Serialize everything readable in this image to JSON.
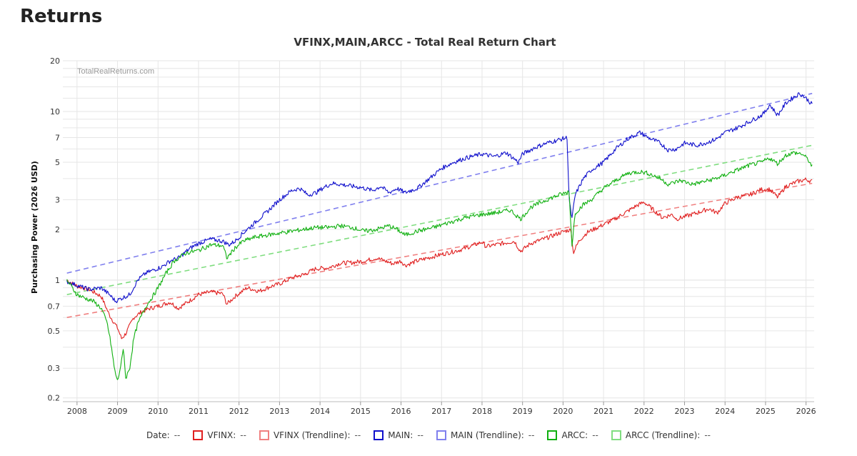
{
  "page": {
    "title": "Returns"
  },
  "legend": {
    "date_label": "Date:",
    "date_value": "--",
    "items": [
      {
        "label": "VFINX:",
        "value": "--",
        "color": "#e02020",
        "style": "solid"
      },
      {
        "label": "VFINX (Trendline):",
        "value": "--",
        "color": "#f08080",
        "style": "dashed"
      },
      {
        "label": "MAIN:",
        "value": "--",
        "color": "#1010cc",
        "style": "solid"
      },
      {
        "label": "MAIN (Trendline):",
        "value": "--",
        "color": "#8080ee",
        "style": "dashed"
      },
      {
        "label": "ARCC:",
        "value": "--",
        "color": "#10b010",
        "style": "solid"
      },
      {
        "label": "ARCC (Trendline):",
        "value": "--",
        "color": "#80dd80",
        "style": "dashed"
      }
    ]
  },
  "chart_data": {
    "type": "line",
    "title": "VFINX,MAIN,ARCC - Total Real Return Chart",
    "ylabel": "Purchasing Power (2026 USD)",
    "xlabel": "",
    "watermark": "TotalRealReturns.com",
    "y_scale": "log",
    "ylim": [
      0.19,
      20
    ],
    "xlim": [
      2007.7,
      2026.2
    ],
    "yticks": [
      0.2,
      0.3,
      0.5,
      0.7,
      1,
      2,
      3,
      5,
      7,
      10,
      20
    ],
    "ytick_labels": [
      "0.2",
      "0.3",
      "0.5",
      "0.7",
      "1",
      "2",
      "3",
      "5",
      "7",
      "10",
      "20"
    ],
    "xticks": [
      2008,
      2009,
      2010,
      2011,
      2012,
      2013,
      2014,
      2015,
      2016,
      2017,
      2018,
      2019,
      2020,
      2021,
      2022,
      2023,
      2024,
      2025,
      2026
    ],
    "xtick_labels": [
      "2008",
      "2009",
      "2010",
      "2011",
      "2012",
      "2013",
      "2014",
      "2015",
      "2016",
      "2017",
      "2018",
      "2019",
      "2020",
      "2021",
      "2022",
      "2023",
      "2024",
      "2025",
      "2026"
    ],
    "grid": true,
    "legend_position": "bottom",
    "series": [
      {
        "name": "VFINX",
        "color": "#e02020",
        "dash": false,
        "x": [
          2007.75,
          2008.0,
          2008.3,
          2008.6,
          2008.8,
          2009.0,
          2009.1,
          2009.2,
          2009.4,
          2009.6,
          2009.8,
          2010.0,
          2010.3,
          2010.5,
          2010.8,
          2011.0,
          2011.3,
          2011.6,
          2011.7,
          2011.9,
          2012.2,
          2012.5,
          2012.8,
          2013.0,
          2013.3,
          2013.6,
          2013.9,
          2014.2,
          2014.5,
          2014.8,
          2015.1,
          2015.4,
          2015.6,
          2015.8,
          2016.0,
          2016.1,
          2016.4,
          2016.8,
          2017.0,
          2017.5,
          2018.0,
          2018.1,
          2018.5,
          2018.8,
          2018.95,
          2019.2,
          2019.6,
          2019.9,
          2020.1,
          2020.2,
          2020.25,
          2020.4,
          2020.6,
          2020.9,
          2021.2,
          2021.5,
          2021.8,
          2022.0,
          2022.2,
          2022.45,
          2022.7,
          2022.8,
          2023.0,
          2023.3,
          2023.6,
          2023.8,
          2024.0,
          2024.3,
          2024.6,
          2024.9,
          2025.1,
          2025.3,
          2025.5,
          2025.8,
          2026.0,
          2026.15
        ],
        "y": [
          1.0,
          0.92,
          0.88,
          0.8,
          0.62,
          0.52,
          0.45,
          0.48,
          0.6,
          0.65,
          0.68,
          0.7,
          0.74,
          0.68,
          0.76,
          0.82,
          0.85,
          0.83,
          0.72,
          0.8,
          0.9,
          0.86,
          0.92,
          0.95,
          1.03,
          1.08,
          1.17,
          1.18,
          1.26,
          1.27,
          1.3,
          1.35,
          1.3,
          1.25,
          1.3,
          1.22,
          1.3,
          1.38,
          1.42,
          1.52,
          1.68,
          1.58,
          1.65,
          1.7,
          1.48,
          1.65,
          1.78,
          1.9,
          1.97,
          1.98,
          1.45,
          1.72,
          1.92,
          2.08,
          2.25,
          2.48,
          2.75,
          2.9,
          2.65,
          2.35,
          2.45,
          2.3,
          2.38,
          2.5,
          2.65,
          2.5,
          2.85,
          3.1,
          3.2,
          3.45,
          3.45,
          3.1,
          3.6,
          3.85,
          3.95,
          3.85
        ]
      },
      {
        "name": "VFINX (Trendline)",
        "color": "#f08080",
        "dash": true,
        "x": [
          2007.75,
          2026.15
        ],
        "y": [
          0.6,
          3.75
        ]
      },
      {
        "name": "MAIN",
        "color": "#1010cc",
        "dash": false,
        "x": [
          2007.75,
          2008.0,
          2008.3,
          2008.6,
          2008.8,
          2008.95,
          2009.1,
          2009.3,
          2009.5,
          2009.7,
          2009.9,
          2010.1,
          2010.3,
          2010.5,
          2010.8,
          2011.0,
          2011.3,
          2011.6,
          2011.75,
          2011.9,
          2012.1,
          2012.4,
          2012.7,
          2013.0,
          2013.3,
          2013.5,
          2013.7,
          2013.9,
          2014.1,
          2014.3,
          2014.5,
          2014.8,
          2015.0,
          2015.3,
          2015.5,
          2015.7,
          2015.9,
          2016.1,
          2016.4,
          2016.7,
          2017.0,
          2017.3,
          2017.6,
          2018.0,
          2018.3,
          2018.6,
          2018.9,
          2019.0,
          2019.3,
          2019.6,
          2019.9,
          2020.1,
          2020.15,
          2020.22,
          2020.3,
          2020.5,
          2020.7,
          2021.0,
          2021.3,
          2021.6,
          2021.9,
          2022.1,
          2022.4,
          2022.6,
          2022.8,
          2023.0,
          2023.3,
          2023.6,
          2023.8,
          2024.0,
          2024.3,
          2024.6,
          2024.9,
          2025.0,
          2025.1,
          2025.3,
          2025.5,
          2025.7,
          2025.85,
          2026.0,
          2026.15
        ],
        "y": [
          0.98,
          0.93,
          0.88,
          0.9,
          0.82,
          0.75,
          0.78,
          0.82,
          1.0,
          1.1,
          1.15,
          1.2,
          1.3,
          1.35,
          1.55,
          1.65,
          1.75,
          1.7,
          1.62,
          1.7,
          1.9,
          2.2,
          2.55,
          3.0,
          3.4,
          3.5,
          3.2,
          3.3,
          3.55,
          3.75,
          3.7,
          3.6,
          3.55,
          3.4,
          3.6,
          3.3,
          3.5,
          3.3,
          3.5,
          4.0,
          4.6,
          5.0,
          5.3,
          5.6,
          5.4,
          5.7,
          5.0,
          5.6,
          6.1,
          6.5,
          6.8,
          7.0,
          3.0,
          2.3,
          3.2,
          4.0,
          4.5,
          5.0,
          6.0,
          6.9,
          7.5,
          7.0,
          6.5,
          5.9,
          6.0,
          6.5,
          6.3,
          6.6,
          6.9,
          7.5,
          8.0,
          8.7,
          9.5,
          10.0,
          11.0,
          9.5,
          11.2,
          12.2,
          12.8,
          12.0,
          11.0
        ]
      },
      {
        "name": "MAIN (Trendline)",
        "color": "#8080ee",
        "dash": true,
        "x": [
          2007.75,
          2026.15
        ],
        "y": [
          1.1,
          12.8
        ]
      },
      {
        "name": "ARCC",
        "color": "#10b010",
        "dash": false,
        "x": [
          2007.75,
          2008.0,
          2008.2,
          2008.4,
          2008.6,
          2008.75,
          2008.85,
          2008.92,
          2009.0,
          2009.1,
          2009.15,
          2009.2,
          2009.3,
          2009.4,
          2009.5,
          2009.7,
          2009.9,
          2010.0,
          2010.2,
          2010.4,
          2010.7,
          2011.0,
          2011.3,
          2011.6,
          2011.7,
          2011.9,
          2012.1,
          2012.4,
          2012.7,
          2013.0,
          2013.3,
          2013.6,
          2013.9,
          2014.2,
          2014.5,
          2014.8,
          2015.1,
          2015.4,
          2015.7,
          2015.9,
          2016.1,
          2016.4,
          2016.8,
          2017.2,
          2017.6,
          2018.0,
          2018.3,
          2018.7,
          2018.95,
          2019.2,
          2019.6,
          2019.9,
          2020.1,
          2020.15,
          2020.22,
          2020.3,
          2020.5,
          2020.7,
          2021.0,
          2021.3,
          2021.6,
          2021.9,
          2022.1,
          2022.4,
          2022.6,
          2022.9,
          2023.2,
          2023.6,
          2023.9,
          2024.2,
          2024.6,
          2024.9,
          2025.1,
          2025.3,
          2025.5,
          2025.7,
          2025.9,
          2026.05,
          2026.15
        ],
        "y": [
          1.0,
          0.82,
          0.78,
          0.75,
          0.68,
          0.55,
          0.4,
          0.3,
          0.25,
          0.33,
          0.4,
          0.26,
          0.3,
          0.45,
          0.55,
          0.7,
          0.82,
          0.9,
          1.1,
          1.3,
          1.45,
          1.5,
          1.62,
          1.6,
          1.35,
          1.55,
          1.7,
          1.8,
          1.85,
          1.9,
          1.95,
          2.0,
          2.05,
          2.05,
          2.1,
          2.05,
          1.95,
          2.0,
          2.1,
          2.0,
          1.85,
          1.95,
          2.05,
          2.2,
          2.35,
          2.45,
          2.5,
          2.6,
          2.3,
          2.7,
          3.0,
          3.2,
          3.3,
          3.4,
          1.6,
          2.5,
          2.8,
          3.0,
          3.5,
          3.9,
          4.3,
          4.4,
          4.3,
          4.0,
          3.7,
          3.9,
          3.7,
          3.9,
          4.1,
          4.4,
          4.8,
          5.0,
          5.3,
          4.9,
          5.5,
          5.7,
          5.6,
          5.2,
          4.7
        ]
      },
      {
        "name": "ARCC (Trendline)",
        "color": "#80dd80",
        "dash": true,
        "x": [
          2007.75,
          2026.15
        ],
        "y": [
          0.82,
          6.3
        ]
      }
    ]
  }
}
